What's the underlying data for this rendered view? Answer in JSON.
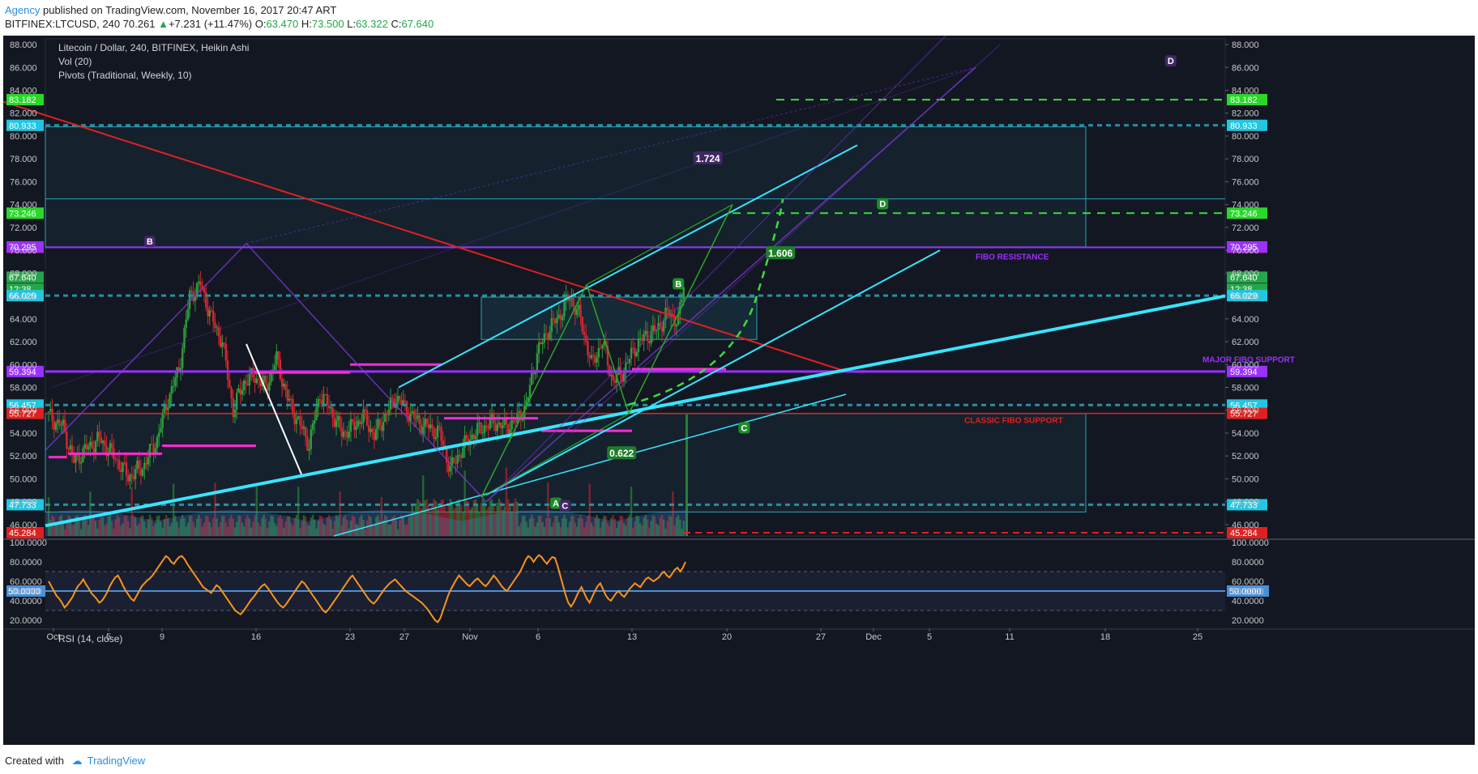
{
  "header": {
    "author": "Agency",
    "published_text": " published on TradingView.com, November 16, 2017 20:47 ART",
    "symbol": "BITFINEX:LTCUSD, 240",
    "last": "70.261",
    "change": "+7.231 (+11.47%)",
    "o_label": "O:",
    "o_value": "63.470",
    "h_label": "H:",
    "h_value": "73.500",
    "l_label": "L:",
    "l_value": "63.322",
    "c_label": "C:",
    "c_value": "67.640"
  },
  "footer": {
    "created_with": "Created with",
    "tradingview": "TradingView"
  },
  "colors": {
    "background": "#131722",
    "bull": "#26a69a",
    "bear": "#ef5350",
    "bull_candle": "#2e9e3a",
    "bear_candle": "#d6262f",
    "purple": "#9b30ff",
    "cyan": "#37e5ff",
    "red": "#ff2a2a",
    "green": "#4cff4c",
    "magenta": "#ff2ad4",
    "rsi_line": "#f7931e",
    "rsi_mid": "#4a90d9"
  },
  "chart_data": [
    {
      "type": "candlestick",
      "title": "Litecoin / Dollar, 240, BITFINEX, Heikin Ashi",
      "indicators": [
        "Vol (20)",
        "Pivots (Traditional, Weekly, 10)"
      ],
      "y_axis": {
        "range": [
          45,
          88.5
        ],
        "ticks": [
          46,
          48,
          50,
          52,
          54,
          56,
          58,
          60,
          62,
          64,
          66,
          68,
          70,
          72,
          74,
          76,
          78,
          80,
          82,
          84,
          86,
          88
        ],
        "tick_labels": [
          "46.000",
          "48.000",
          "50.000",
          "52.000",
          "54.000",
          "56.000",
          "58.000",
          "60.000",
          "62.000",
          "64.000",
          "66.000",
          "68.000",
          "70.000",
          "72.000",
          "74.000",
          "76.000",
          "78.000",
          "80.000",
          "82.000",
          "84.000",
          "86.000",
          "88.000"
        ]
      },
      "x_axis": {
        "tick_labels": [
          "Oct",
          "5",
          "9",
          "16",
          "23",
          "27",
          "Nov",
          "6",
          "13",
          "20",
          "27",
          "Dec",
          "5",
          "11",
          "18",
          "25"
        ]
      },
      "price_labels": [
        {
          "value": 83.182,
          "text": "83.182",
          "color": "#2ad82a"
        },
        {
          "value": 80.933,
          "text": "80.933",
          "color": "#22c6e0"
        },
        {
          "value": 73.246,
          "text": "73.246",
          "color": "#2ad82a"
        },
        {
          "value": 70.261,
          "text": "70.261",
          "color": "#e02020"
        },
        {
          "value": 70.295,
          "text": "70.295",
          "color": "#9b30ff"
        },
        {
          "value": 67.64,
          "text": "67.640",
          "color": "#26a64a"
        },
        {
          "value": 66.6,
          "text": "12:38",
          "color": "#26a64a"
        },
        {
          "value": 66.029,
          "text": "66.029",
          "color": "#22c6e0"
        },
        {
          "value": 59.394,
          "text": "59.394",
          "color": "#9b30ff"
        },
        {
          "value": 56.457,
          "text": "56.457",
          "color": "#22c6e0"
        },
        {
          "value": 55.727,
          "text": "55.727",
          "color": "#e02020"
        },
        {
          "value": 47.733,
          "text": "47.733",
          "color": "#22c6e0"
        },
        {
          "value": 45.284,
          "text": "45.284",
          "color": "#e02020"
        }
      ],
      "annotations": [
        {
          "text": "FIBO RESISTANCE",
          "x": 41.0,
          "y": 69.2,
          "color": "#9b30ff"
        },
        {
          "text": "MAJOR FIBO SUPPORT",
          "x": 51.0,
          "y": 60.2,
          "color": "#9b30ff"
        },
        {
          "text": "CLASSIC FIBO SUPPORT",
          "x": 40.5,
          "y": 54.9,
          "color": "#e02020"
        },
        {
          "text": "1.724",
          "x": 29.2,
          "y": 77.8,
          "color": "#ffffff"
        },
        {
          "text": "1.606",
          "x": 32.4,
          "y": 69.5,
          "color": "#ffffff"
        },
        {
          "text": "0.622",
          "x": 25.4,
          "y": 52.0,
          "color": "#ffffff"
        }
      ],
      "pattern_points": [
        {
          "label": "B",
          "x": 4.6,
          "y": 70.7,
          "style": "purple"
        },
        {
          "label": "D",
          "x": 49.6,
          "y": 86.5,
          "style": "purple"
        },
        {
          "label": "B",
          "x": 27.9,
          "y": 67.0,
          "style": "green"
        },
        {
          "label": "D",
          "x": 36.9,
          "y": 74.0,
          "style": "green"
        },
        {
          "label": "C",
          "x": 30.8,
          "y": 54.4,
          "style": "green"
        },
        {
          "label": "A",
          "x": 22.5,
          "y": 47.8,
          "style": "green"
        },
        {
          "label": "C",
          "x": 22.9,
          "y": 47.6,
          "style": "purple"
        }
      ],
      "ohlc_summary": {
        "open": 63.47,
        "high": 73.5,
        "low": 63.322,
        "close": 67.64,
        "last": 70.261
      }
    },
    {
      "type": "line",
      "title": "RSI (14, close)",
      "y_axis": {
        "range": [
          15,
          100
        ],
        "ticks": [
          20,
          40,
          50,
          60,
          80,
          100
        ],
        "tick_labels": [
          "20.0000",
          "40.0000",
          "50.0000",
          "60.0000",
          "80.0000",
          "100.0000"
        ]
      },
      "mid_label": "50.0000",
      "bands": [
        30,
        70
      ],
      "values": [
        60,
        55,
        50,
        45,
        42,
        38,
        33,
        36,
        40,
        44,
        50,
        55,
        58,
        62,
        57,
        53,
        48,
        45,
        42,
        38,
        40,
        44,
        49,
        55,
        60,
        64,
        66,
        61,
        55,
        50,
        46,
        42,
        40,
        45,
        50,
        55,
        58,
        61,
        63,
        66,
        70,
        74,
        78,
        82,
        86,
        84,
        80,
        78,
        82,
        85,
        86,
        83,
        78,
        74,
        70,
        66,
        62,
        58,
        54,
        52,
        50,
        48,
        52,
        56,
        54,
        50,
        46,
        42,
        38,
        34,
        30,
        28,
        26,
        29,
        33,
        37,
        41,
        44,
        48,
        52,
        55,
        57,
        54,
        50,
        46,
        42,
        38,
        35,
        33,
        36,
        40,
        44,
        48,
        52,
        56,
        60,
        58,
        54,
        50,
        46,
        42,
        38,
        34,
        30,
        28,
        31,
        35,
        39,
        43,
        47,
        51,
        55,
        59,
        63,
        66,
        62,
        58,
        54,
        50,
        46,
        42,
        39,
        37,
        40,
        44,
        48,
        52,
        55,
        58,
        60,
        62,
        59,
        56,
        53,
        50,
        48,
        46,
        44,
        42,
        40,
        38,
        35,
        32,
        28,
        24,
        20,
        18,
        22,
        30,
        38,
        46,
        52,
        57,
        62,
        66,
        63,
        60,
        57,
        55,
        58,
        61,
        63,
        60,
        57,
        55,
        58,
        62,
        66,
        63,
        59,
        55,
        52,
        50,
        54,
        58,
        62,
        66,
        70,
        76,
        82,
        86,
        84,
        80,
        84,
        87,
        85,
        81,
        78,
        82,
        85,
        84,
        76,
        66,
        56,
        46,
        38,
        34,
        38,
        44,
        50,
        54,
        48,
        42,
        38,
        44,
        50,
        55,
        58,
        52,
        46,
        42,
        40,
        44,
        48,
        50,
        46,
        44,
        48,
        52,
        55,
        58,
        56,
        54,
        58,
        62,
        64,
        62,
        60,
        62,
        64,
        68,
        70,
        66,
        64,
        68,
        72,
        74,
        70,
        74,
        80
      ]
    }
  ],
  "legend": {
    "title": "Litecoin / Dollar, 240, BITFINEX, Heikin Ashi",
    "vol": "Vol (20)",
    "pivots": "Pivots (Traditional, Weekly, 10)",
    "rsi": "RSI (14, close)"
  }
}
